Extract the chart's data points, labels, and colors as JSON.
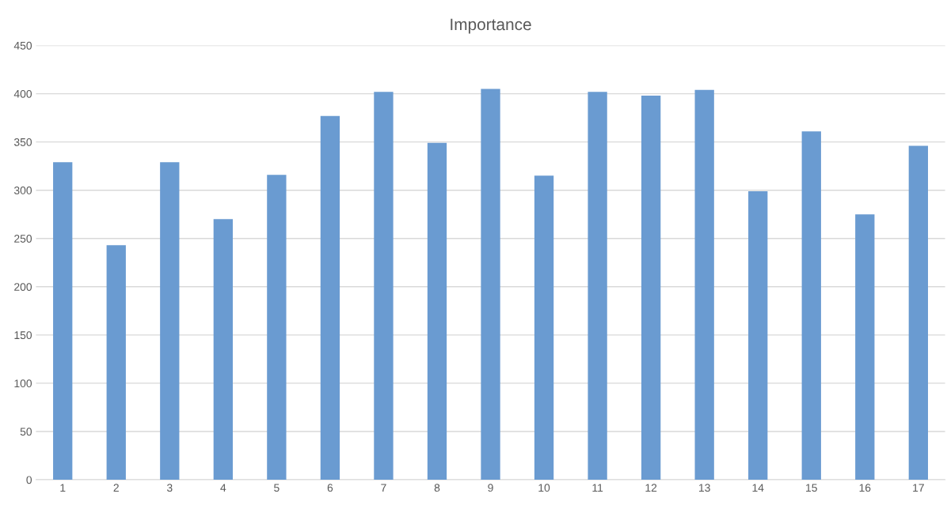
{
  "chart_data": {
    "type": "bar",
    "title": "Importance",
    "categories": [
      "1",
      "2",
      "3",
      "4",
      "5",
      "6",
      "7",
      "8",
      "9",
      "10",
      "11",
      "12",
      "13",
      "14",
      "15",
      "16",
      "17"
    ],
    "values": [
      329,
      243,
      329,
      270,
      316,
      377,
      402,
      349,
      405,
      315,
      402,
      398,
      404,
      299,
      361,
      275,
      346
    ],
    "color": "#6a9bd1",
    "ylim": [
      0,
      450
    ],
    "yticks": [
      0,
      50,
      100,
      150,
      200,
      250,
      300,
      350,
      400,
      450
    ],
    "grid": "y"
  }
}
